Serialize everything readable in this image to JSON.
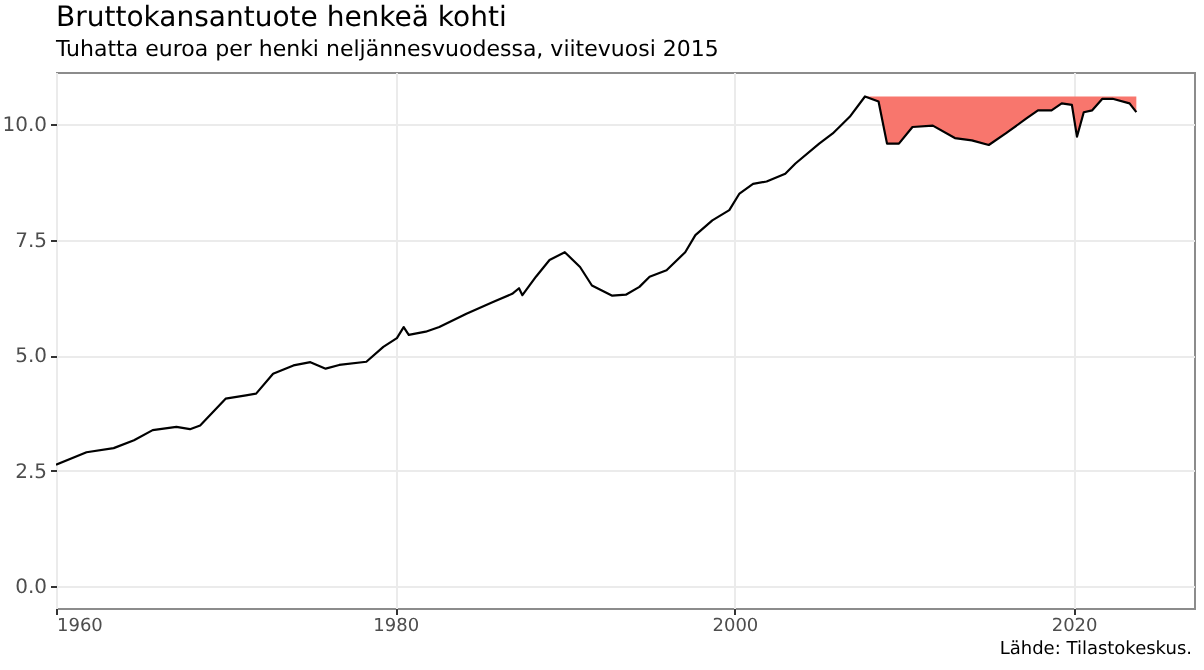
{
  "chart_data": {
    "type": "line",
    "title": "Bruttokansantuote henkeä kohti",
    "subtitle": "Tuhatta euroa per henki neljännesvuodessa, viitevuosi 2015",
    "annotations": [
      "Lähde: Tilastokeskus."
    ],
    "x": [
      1960,
      1961.8,
      1963.4,
      1964.6,
      1965.7,
      1967.1,
      1967.9,
      1968.5,
      1970.0,
      1971.2,
      1971.8,
      1972.8,
      1974.0,
      1975.0,
      1975.9,
      1976.7,
      1978.3,
      1979.3,
      1980.1,
      1980.5,
      1980.8,
      1981.8,
      1982.6,
      1984.2,
      1985.8,
      1986.9,
      1987.3,
      1987.5,
      1988.3,
      1989.1,
      1990.0,
      1990.9,
      1991.6,
      1992.8,
      1993.6,
      1994.4,
      1995.0,
      1996.0,
      1997.1,
      1997.7,
      1998.7,
      1999.7,
      2000.3,
      2001.1,
      2001.9,
      2003.0,
      2003.6,
      2005.0,
      2005.8,
      2006.8,
      2007.7,
      2008.5,
      2009.0,
      2009.7,
      2010.5,
      2011.7,
      2013.0,
      2014.0,
      2015.0,
      2016.0,
      2017.2,
      2017.9,
      2018.7,
      2019.3,
      2019.9,
      2020.2,
      2020.6,
      2021.1,
      2021.7,
      2022.3,
      2023.3,
      2023.7
    ],
    "series": [
      {
        "color": "#000000",
        "values": [
          2.63,
          2.9,
          2.99,
          3.16,
          3.38,
          3.45,
          3.4,
          3.48,
          4.06,
          4.13,
          4.17,
          4.6,
          4.78,
          4.85,
          4.71,
          4.79,
          4.86,
          5.18,
          5.37,
          5.61,
          5.44,
          5.51,
          5.61,
          5.9,
          6.16,
          6.33,
          6.45,
          6.3,
          6.7,
          7.06,
          7.23,
          6.91,
          6.51,
          6.29,
          6.31,
          6.48,
          6.7,
          6.84,
          7.23,
          7.6,
          7.92,
          8.14,
          8.5,
          8.71,
          8.76,
          8.93,
          9.15,
          9.58,
          9.8,
          10.16,
          10.6,
          10.49,
          9.58,
          9.58,
          9.94,
          9.97,
          9.7,
          9.65,
          9.55,
          9.8,
          10.12,
          10.3,
          10.3,
          10.45,
          10.42,
          9.73,
          10.26,
          10.3,
          10.55,
          10.55,
          10.45,
          10.26
        ],
        "lower": [
          null,
          null,
          null,
          null,
          null,
          null,
          null,
          null,
          null,
          null,
          null,
          null,
          null,
          null,
          null,
          null,
          null,
          null,
          null,
          null,
          null,
          null,
          null,
          null,
          null,
          null,
          null,
          null,
          null,
          null,
          null,
          null,
          null,
          null,
          null,
          null,
          null,
          null,
          null,
          null,
          null,
          null,
          null,
          null,
          null,
          null,
          null,
          null,
          null,
          null,
          10.6,
          10.49,
          9.58,
          9.58,
          9.94,
          9.97,
          9.7,
          9.65,
          9.55,
          9.8,
          10.12,
          10.3,
          10.3,
          10.45,
          10.42,
          9.73,
          10.26,
          10.3,
          10.55,
          10.55,
          10.45,
          10.26
        ],
        "upper": [
          null,
          null,
          null,
          null,
          null,
          null,
          null,
          null,
          null,
          null,
          null,
          null,
          null,
          null,
          null,
          null,
          null,
          null,
          null,
          null,
          null,
          null,
          null,
          null,
          null,
          null,
          null,
          null,
          null,
          null,
          null,
          null,
          null,
          null,
          null,
          null,
          null,
          null,
          null,
          null,
          null,
          null,
          null,
          null,
          null,
          null,
          null,
          null,
          null,
          null,
          10.6,
          10.6,
          10.6,
          10.6,
          10.6,
          10.6,
          10.6,
          10.6,
          10.6,
          10.6,
          10.6,
          10.6,
          10.6,
          10.6,
          10.6,
          10.6,
          10.6,
          10.6,
          10.6,
          10.6,
          10.6,
          10.6
        ]
      }
    ],
    "xlim": [
      1960,
      2027.1
    ],
    "xticks": [
      1960,
      1980,
      2000,
      2020
    ],
    "ylim": [
      -0.47,
      11.13
    ],
    "yticks": [
      {
        "value": 0,
        "label": "0.0"
      },
      {
        "value": 2.5,
        "label": "2.5"
      },
      {
        "value": 5,
        "label": "5.0"
      },
      {
        "value": 7.5,
        "label": "7.5"
      },
      {
        "value": 10,
        "label": "10.0"
      }
    ],
    "grid": true,
    "line_style": "solid"
  }
}
